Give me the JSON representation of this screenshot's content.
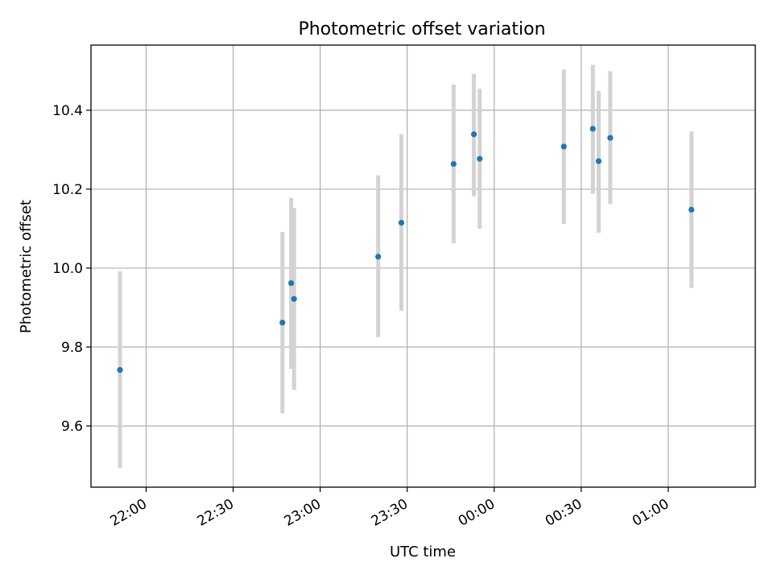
{
  "chart_data": {
    "type": "scatter",
    "title": "Photometric offset variation",
    "xlabel": "UTC time",
    "ylabel": "Photometric offset",
    "x_axis": {
      "kind": "time",
      "range": [
        "21:41",
        "01:30"
      ],
      "ticks": [
        "22:00",
        "22:30",
        "23:00",
        "23:30",
        "00:00",
        "00:30",
        "01:00"
      ]
    },
    "y_axis": {
      "range": [
        9.445,
        10.565
      ],
      "ticks": [
        9.6,
        9.8,
        10.0,
        10.2,
        10.4
      ],
      "tick_labels": [
        "9.6",
        "9.8",
        "10.0",
        "10.2",
        "10.4"
      ]
    },
    "grid": true,
    "colors": {
      "point": "#1f77b4",
      "errorbar": "#d3d3d3",
      "grid": "#b0b0b0"
    },
    "series": [
      {
        "points": [
          {
            "t": "21:51",
            "y": 9.742,
            "lo": 9.493,
            "hi": 9.992
          },
          {
            "t": "22:47",
            "y": 9.862,
            "lo": 9.632,
            "hi": 10.092
          },
          {
            "t": "22:50",
            "y": 9.962,
            "lo": 9.745,
            "hi": 10.178
          },
          {
            "t": "22:51",
            "y": 9.922,
            "lo": 9.692,
            "hi": 10.153
          },
          {
            "t": "23:20",
            "y": 10.029,
            "lo": 9.825,
            "hi": 10.235
          },
          {
            "t": "23:28",
            "y": 10.115,
            "lo": 9.892,
            "hi": 10.339
          },
          {
            "t": "23:46",
            "y": 10.264,
            "lo": 10.063,
            "hi": 10.465
          },
          {
            "t": "23:53",
            "y": 10.339,
            "lo": 10.182,
            "hi": 10.492
          },
          {
            "t": "23:55",
            "y": 10.277,
            "lo": 10.1,
            "hi": 10.455
          },
          {
            "t": "00:24",
            "y": 10.308,
            "lo": 10.112,
            "hi": 10.503
          },
          {
            "t": "00:34",
            "y": 10.353,
            "lo": 10.188,
            "hi": 10.515
          },
          {
            "t": "00:36",
            "y": 10.271,
            "lo": 10.09,
            "hi": 10.449
          },
          {
            "t": "00:40",
            "y": 10.33,
            "lo": 10.162,
            "hi": 10.499
          },
          {
            "t": "01:08",
            "y": 10.148,
            "lo": 9.95,
            "hi": 10.346
          }
        ]
      }
    ]
  }
}
